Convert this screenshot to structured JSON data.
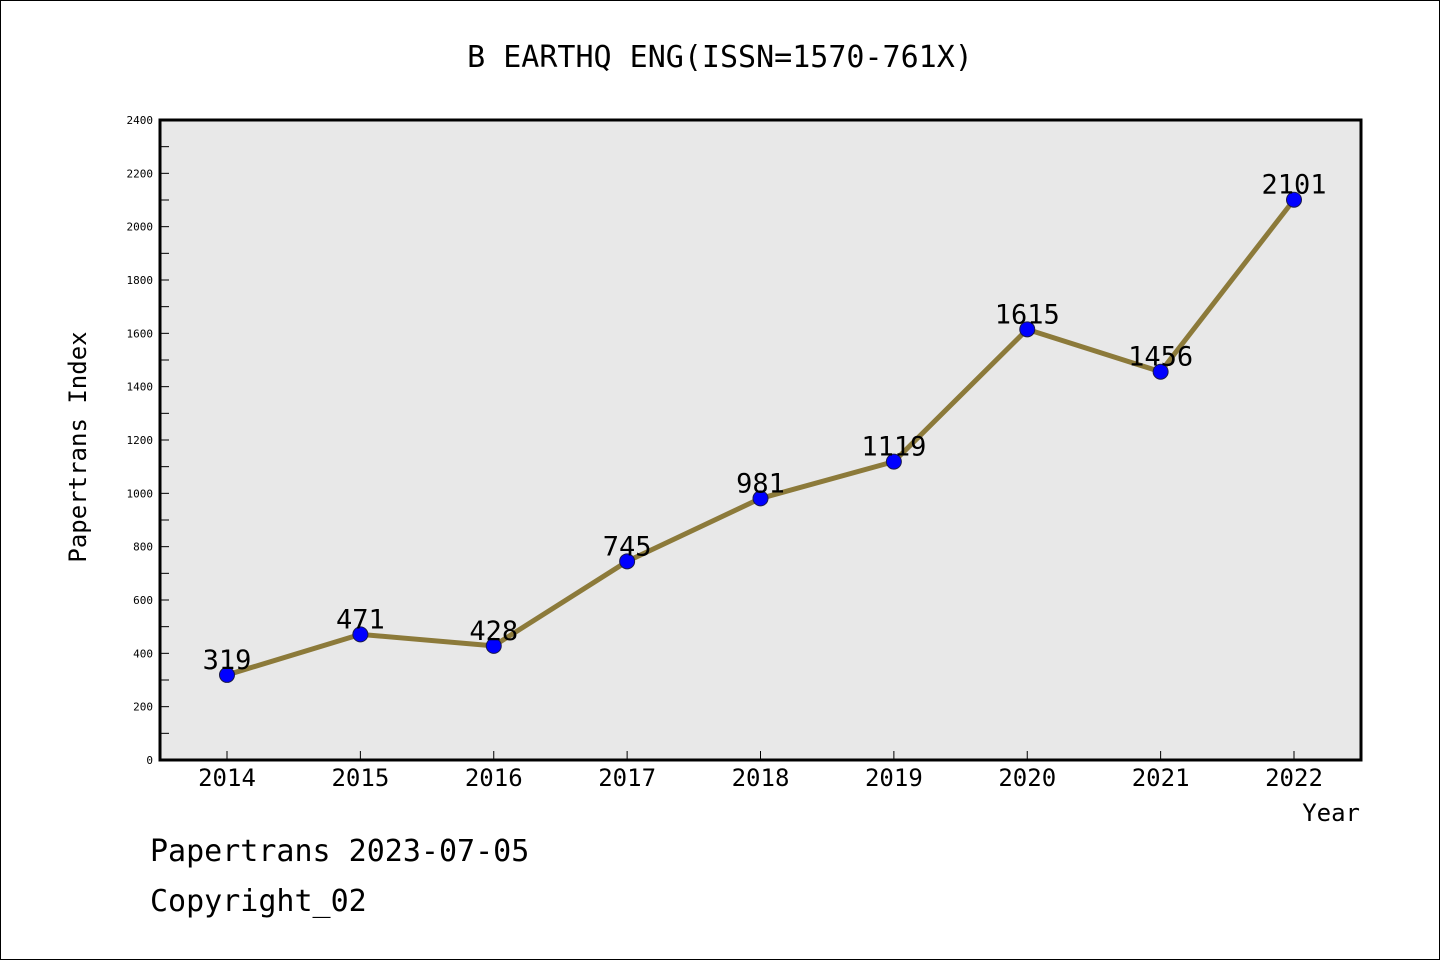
{
  "chart_data": {
    "type": "line",
    "title": "B EARTHQ ENG(ISSN=1570-761X)",
    "xlabel": "Year",
    "ylabel": "Papertrans Index",
    "categories": [
      "2014",
      "2015",
      "2016",
      "2017",
      "2018",
      "2019",
      "2020",
      "2021",
      "2022"
    ],
    "series": [
      {
        "values": [
          319,
          471,
          428,
          745,
          981,
          1119,
          1615,
          1456,
          2101
        ],
        "data_labels": [
          "319",
          "471",
          "428",
          "745",
          "981",
          "1119",
          "1615",
          "1456",
          "2101"
        ]
      }
    ],
    "ylim": [
      0,
      2400
    ],
    "yticks": [
      "0",
      "200",
      "400",
      "600",
      "800",
      "1000",
      "1200",
      "1400",
      "1600",
      "1800",
      "2000",
      "2200",
      "2400"
    ],
    "grid": false,
    "legend": "none",
    "line_color": "#8c7a3a",
    "marker_color": "#0000ff",
    "plot_background": "#e8e8e8"
  },
  "footer": {
    "line1": "Papertrans 2023-07-05",
    "line2": "Copyright_02"
  }
}
